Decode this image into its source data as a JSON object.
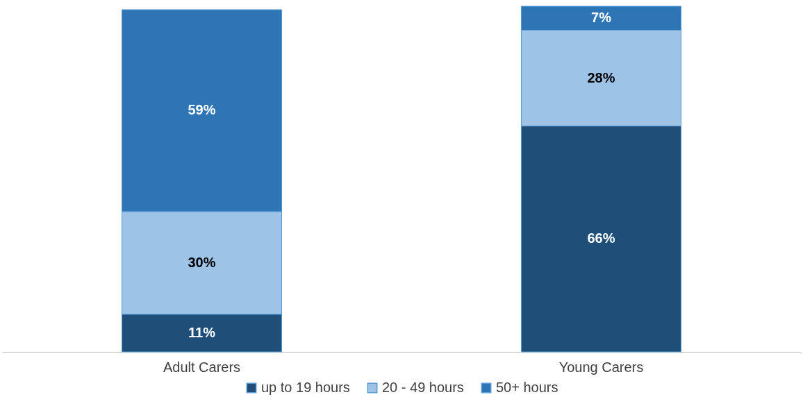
{
  "chart_data": {
    "type": "bar",
    "stacked": true,
    "legend": "bottom",
    "categories": [
      "Adult Carers",
      "Young Carers"
    ],
    "series": [
      {
        "name": "up to 19 hours",
        "color": "#1f4e79",
        "values": [
          11,
          66
        ],
        "value_labels": [
          "11%",
          "66%"
        ]
      },
      {
        "name": "20 - 49 hours",
        "color": "#9dc3e6",
        "values": [
          30,
          28
        ],
        "value_labels": [
          "30%",
          "28%"
        ]
      },
      {
        "name": "50+ hours",
        "color": "#2e75b6",
        "values": [
          59,
          7
        ],
        "value_labels": [
          "59%",
          "7%"
        ]
      }
    ]
  }
}
